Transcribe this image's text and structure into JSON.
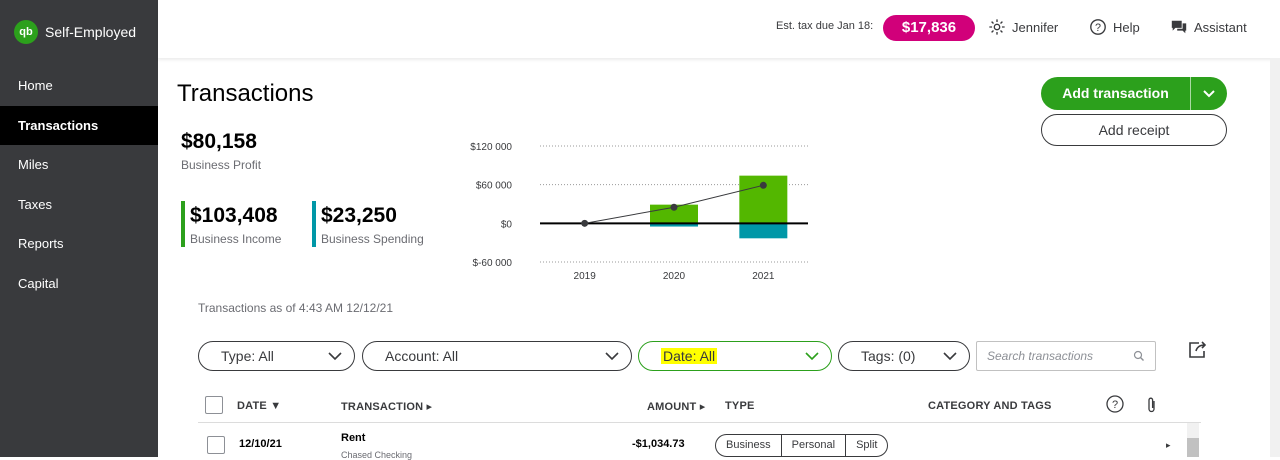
{
  "app": {
    "name": "Self-Employed",
    "logo_text": "qb"
  },
  "sidebar": {
    "items": [
      {
        "label": "Home"
      },
      {
        "label": "Transactions"
      },
      {
        "label": "Miles"
      },
      {
        "label": "Taxes"
      },
      {
        "label": "Reports"
      },
      {
        "label": "Capital"
      }
    ]
  },
  "topbar": {
    "est_tax_label": "Est. tax due Jan 18:",
    "est_tax_value": "$17,836",
    "user": "Jennifer",
    "help": "Help",
    "assistant": "Assistant"
  },
  "page": {
    "title": "Transactions",
    "add_transaction": "Add transaction",
    "add_receipt": "Add receipt"
  },
  "kpis": {
    "profit_value": "$80,158",
    "profit_label": "Business Profit",
    "income_value": "$103,408",
    "income_label": "Business Income",
    "spending_value": "$23,250",
    "spending_label": "Business Spending",
    "income_color": "#2ca01c",
    "spending_color": "#0097a7"
  },
  "chart_data": {
    "type": "bar",
    "categories": [
      "2019",
      "2020",
      "2021"
    ],
    "series": [
      {
        "values": [
          0,
          29000,
          74000
        ],
        "color": "#53b700"
      },
      {
        "values": [
          0,
          -5000,
          -23250
        ],
        "color": "#0097a7"
      },
      {
        "values": [
          0,
          25000,
          59000
        ],
        "color": "#393a3d"
      }
    ],
    "y_ticks": [
      "$120 000",
      "$60 000",
      "$0",
      "$-60 000"
    ],
    "ylim": [
      -60000,
      120000
    ],
    "grid": true
  },
  "as_of": "Transactions as of 4:43 AM 12/12/21",
  "filters": {
    "type": "Type: All",
    "account": "Account: All",
    "date": "Date: All",
    "tags": "Tags: (0)",
    "search_placeholder": "Search transactions"
  },
  "table": {
    "headers": {
      "date": "DATE",
      "transaction": "TRANSACTION",
      "amount": "AMOUNT",
      "type": "TYPE",
      "category": "CATEGORY AND TAGS"
    },
    "rows": [
      {
        "date": "12/10/21",
        "name": "Rent",
        "account": "Chased Checking",
        "amount": "-$1,034.73",
        "types": [
          "Business",
          "Personal",
          "Split"
        ]
      }
    ]
  }
}
